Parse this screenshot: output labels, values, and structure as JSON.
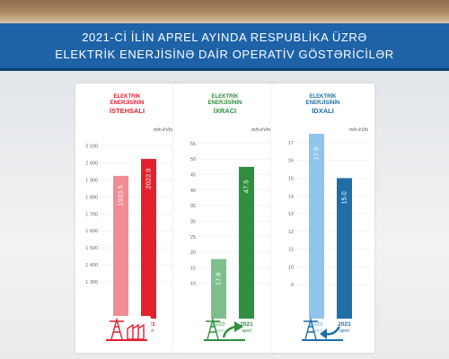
{
  "header": {
    "line1": "2021-Cİ İLİN APREL AYINDA RESPUBLİKA ÜZRƏ",
    "line2": "ELEKTRİK ENERJİSİNƏ DAİR OPERATİV GÖSTƏRİCİLƏR"
  },
  "colors": {
    "banner": "#1e62a8",
    "production_2020": "#f28c93",
    "production_2021": "#e3212e",
    "export_2020": "#7fbf8e",
    "export_2021": "#2f8f3f",
    "import_2020": "#8fc5ea",
    "import_2021": "#1f6ea8"
  },
  "chart_data": [
    {
      "type": "bar",
      "title_line1": "ELEKTRİK",
      "title_line2": "ENERJİSİNİN",
      "title_line3": "İSTEHSALI",
      "unit": "mln.kVts",
      "categories": [
        "2020",
        "2021"
      ],
      "category_sublabels": [
        "aprel",
        "aprel"
      ],
      "values": [
        1923.5,
        2022.9
      ],
      "value_labels": [
        "1923.5",
        "2022.9"
      ],
      "yticks": [
        "1 300",
        "1 400",
        "1 500",
        "1 600",
        "1 700",
        "1 800",
        "1 900",
        "2 000",
        "2 100"
      ],
      "ytick_values": [
        1300,
        1400,
        1500,
        1600,
        1700,
        1800,
        1900,
        2000,
        2100
      ],
      "ylim": [
        1200,
        2150
      ],
      "icon": "power-tower-factory-icon"
    },
    {
      "type": "bar",
      "title_line1": "ELEKTRİK",
      "title_line2": "ENERJİSİNİN",
      "title_line3": "İXRACI",
      "unit": "mln.kVts",
      "categories": [
        "2020",
        "2021"
      ],
      "category_sublabels": [
        "aprel",
        "aprel"
      ],
      "values": [
        17.8,
        47.5
      ],
      "value_labels": [
        "17.8",
        "47.5"
      ],
      "yticks": [
        "10",
        "15",
        "20",
        "25",
        "30",
        "35",
        "40",
        "45",
        "50",
        "55"
      ],
      "ytick_values": [
        10,
        15,
        20,
        25,
        30,
        35,
        40,
        45,
        50,
        55
      ],
      "ylim": [
        5,
        57
      ],
      "icon": "power-tower-export-arrow-icon"
    },
    {
      "type": "bar",
      "title_line1": "ELEKTRİK",
      "title_line2": "ENERJİSİNİN",
      "title_line3": "İDXALI",
      "unit": "mln.kVts",
      "categories": [
        "2020",
        "2021"
      ],
      "category_sublabels": [
        "aprel",
        "aprel"
      ],
      "values": [
        17.5,
        15.0
      ],
      "value_labels": [
        "17.5",
        "15.0"
      ],
      "yticks": [
        "9",
        "10",
        "11",
        "12",
        "13",
        "14",
        "15",
        "16",
        "17"
      ],
      "ytick_values": [
        9,
        10,
        11,
        12,
        13,
        14,
        15,
        16,
        17
      ],
      "ylim": [
        8.2,
        17.3
      ],
      "icon": "power-tower-import-arrow-icon"
    }
  ]
}
